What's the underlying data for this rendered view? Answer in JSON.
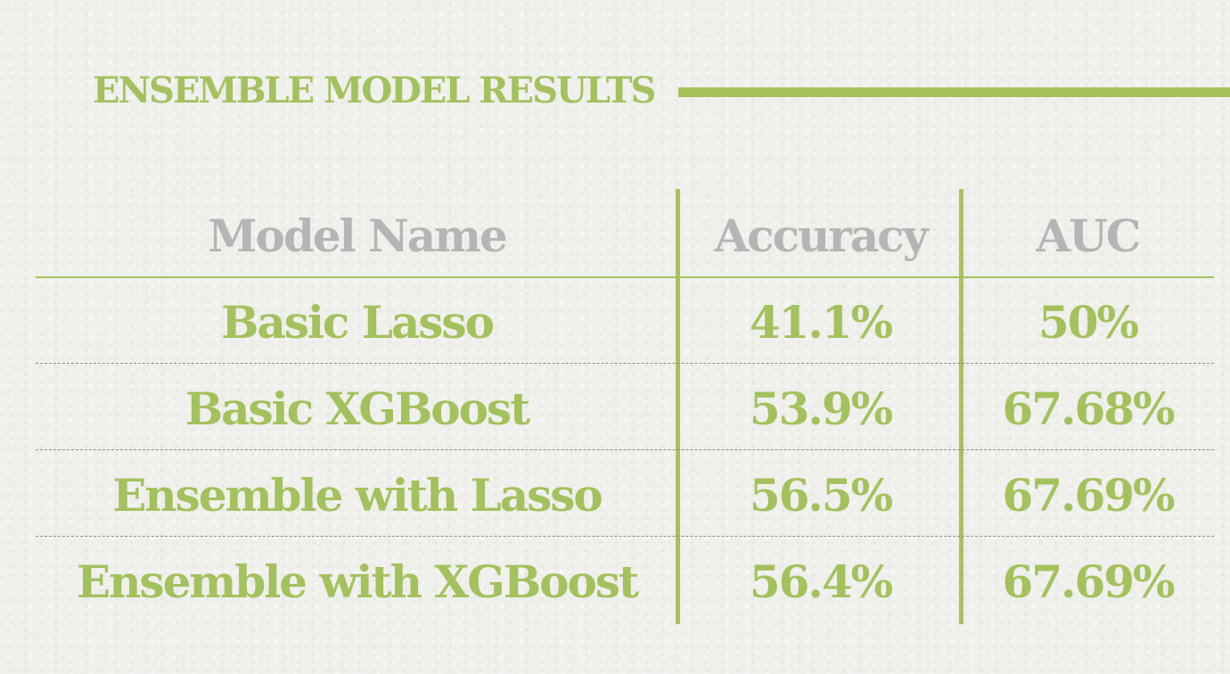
{
  "title": "ENSEMBLE MODEL RESULTS",
  "colors": {
    "accent": "#a6c25b",
    "header_text": "#b5b5b3",
    "row_divider": "#8a8a88",
    "background": "#efefec"
  },
  "table": {
    "headers": {
      "model": "Model Name",
      "accuracy": "Accuracy",
      "auc": "AUC"
    },
    "rows": [
      {
        "model": "Basic Lasso",
        "accuracy": "41.1%",
        "auc": "50%"
      },
      {
        "model": "Basic XGBoost",
        "accuracy": "53.9%",
        "auc": "67.68%"
      },
      {
        "model": "Ensemble with Lasso",
        "accuracy": "56.5%",
        "auc": "67.69%"
      },
      {
        "model": "Ensemble with XGBoost",
        "accuracy": "56.4%",
        "auc": "67.69%"
      }
    ]
  }
}
